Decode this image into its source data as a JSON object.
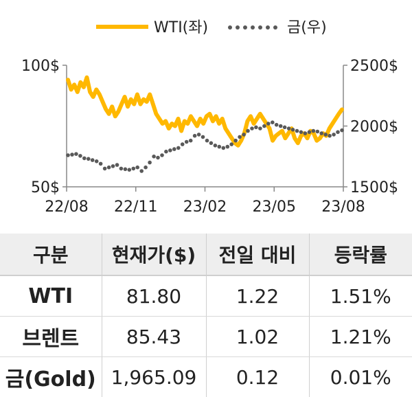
{
  "chart_data": {
    "type": "line",
    "x_ticks": [
      "22/08",
      "22/11",
      "23/02",
      "23/05",
      "23/08"
    ],
    "y_left": {
      "ticks": [
        "100$",
        "50$"
      ],
      "range": [
        50,
        100
      ]
    },
    "y_right": {
      "ticks": [
        "2500$",
        "2000$",
        "1500$"
      ],
      "range": [
        1500,
        2500
      ]
    },
    "legend_placement": "top-center",
    "series": [
      {
        "name": "WTI(좌)",
        "axis": "left",
        "color": "#FFB800",
        "style": "solid",
        "values": [
          94,
          90,
          92,
          89,
          93,
          91,
          95,
          89,
          87,
          90,
          88,
          85,
          82,
          80,
          83,
          79,
          81,
          84,
          87,
          83,
          86,
          84,
          88,
          84,
          86,
          85,
          88,
          84,
          80,
          78,
          76,
          77,
          74,
          76,
          75,
          78,
          73,
          77,
          76,
          79,
          77,
          75,
          78,
          76,
          79,
          80,
          77,
          79,
          76,
          78,
          74,
          72,
          70,
          68,
          67,
          69,
          72,
          77,
          79,
          76,
          78,
          80,
          78,
          76,
          74,
          69,
          71,
          72,
          73,
          70,
          72,
          74,
          70,
          68,
          71,
          72,
          70,
          73,
          72,
          69,
          70,
          72,
          71,
          74,
          76,
          78,
          80,
          81.8
        ]
      },
      {
        "name": "금(우)",
        "axis": "right",
        "color": "#595959",
        "style": "dotted",
        "values": [
          1760,
          1765,
          1770,
          1755,
          1735,
          1730,
          1720,
          1710,
          1690,
          1650,
          1660,
          1670,
          1680,
          1650,
          1645,
          1640,
          1650,
          1660,
          1630,
          1660,
          1700,
          1750,
          1740,
          1760,
          1790,
          1800,
          1810,
          1820,
          1850,
          1870,
          1880,
          1920,
          1930,
          1910,
          1880,
          1860,
          1840,
          1830,
          1820,
          1830,
          1850,
          1880,
          1910,
          1930,
          1960,
          1980,
          1990,
          1980,
          2000,
          2020,
          2030,
          2010,
          2000,
          1990,
          1980,
          1970,
          1960,
          1950,
          1940,
          1950,
          1960,
          1955,
          1940,
          1930,
          1920,
          1930,
          1950,
          1965.09
        ]
      }
    ]
  },
  "table": {
    "headers": [
      "구분",
      "현재가($)",
      "전일 대비",
      "등락률"
    ],
    "rows": [
      [
        "WTI",
        "81.80",
        "1.22",
        "1.51%"
      ],
      [
        "브렌트",
        "85.43",
        "1.02",
        "1.21%"
      ],
      [
        "금(Gold)",
        "1,965.09",
        "0.12",
        "0.01%"
      ]
    ]
  }
}
